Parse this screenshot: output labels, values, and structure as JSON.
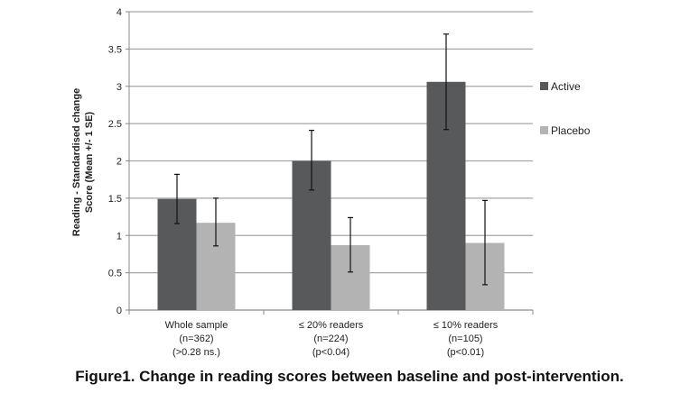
{
  "chart_data": {
    "type": "bar",
    "title": "",
    "ylabel_lines": [
      "Reading - Standardised change",
      "Score (Mean +/- 1 SE)"
    ],
    "xlabel": "",
    "ylim": [
      0,
      4
    ],
    "yticks": [
      0,
      0.5,
      1,
      1.5,
      2,
      2.5,
      3,
      3.5,
      4
    ],
    "ytick_labels": [
      "0",
      "0.5",
      "1",
      "1.5",
      "2",
      "2.5",
      "3",
      "3.5",
      "4"
    ],
    "grid": true,
    "legend_position": "right",
    "categories": [
      [
        "Whole sample",
        "(n=362)",
        "(>0.28 ns.)"
      ],
      [
        "≤ 20% readers",
        "(n=224)",
        "(p<0.04)"
      ],
      [
        "≤ 10% readers",
        "(n=105)",
        "(p<0.01)"
      ]
    ],
    "series": [
      {
        "name": "Active",
        "color": "#58595b",
        "values": [
          1.49,
          2.0,
          3.06
        ],
        "err_low": [
          1.16,
          1.61,
          2.42
        ],
        "err_high": [
          1.82,
          2.41,
          3.7
        ]
      },
      {
        "name": "Placebo",
        "color": "#b3b3b3",
        "values": [
          1.17,
          0.87,
          0.9
        ],
        "err_low": [
          0.86,
          0.51,
          0.34
        ],
        "err_high": [
          1.5,
          1.24,
          1.47
        ]
      }
    ]
  },
  "caption": "Figure1.  Change in reading scores between baseline and post-intervention."
}
